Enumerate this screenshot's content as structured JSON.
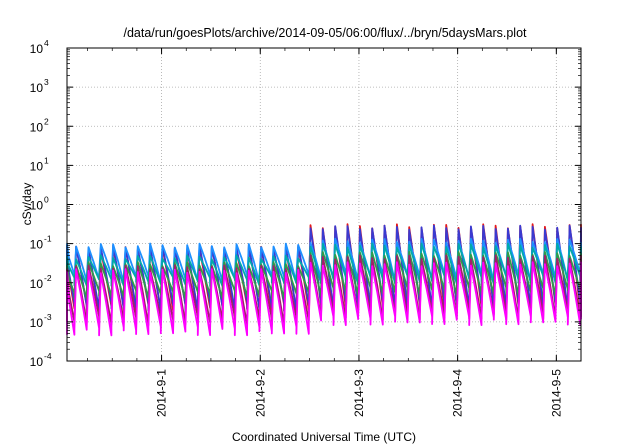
{
  "chart_data": {
    "type": "line",
    "title": "/data/run/goesPlots/archive/2014-09-05/06:00/flux/../bryn/5daysMars.plot",
    "xlabel": "Coordinated Universal Time (UTC)",
    "ylabel": "cSv/day",
    "y_scale": "log",
    "ylim": [
      0.0001,
      10000
    ],
    "y_ticks": [
      {
        "base": "10",
        "exp": "-4"
      },
      {
        "base": "10",
        "exp": "-3"
      },
      {
        "base": "10",
        "exp": "-2"
      },
      {
        "base": "10",
        "exp": "-1"
      },
      {
        "base": "10",
        "exp": "0"
      },
      {
        "base": "10",
        "exp": "1"
      },
      {
        "base": "10",
        "exp": "2"
      },
      {
        "base": "10",
        "exp": "3"
      },
      {
        "base": "10",
        "exp": "4"
      }
    ],
    "xlim": [
      "2014-08-31T01:00",
      "2014-09-05T06:00"
    ],
    "x_ticks": [
      {
        "label": "2014-9-1",
        "time": "2014-09-01T00:00"
      },
      {
        "label": "2014-9-2",
        "time": "2014-09-02T00:00"
      },
      {
        "label": "2014-9-3",
        "time": "2014-09-03T00:00"
      },
      {
        "label": "2014-9-4",
        "time": "2014-09-04T00:00"
      },
      {
        "label": "2014-9-5",
        "time": "2014-09-05T00:00"
      }
    ],
    "grid": true,
    "pattern": {
      "description": "sawtooth: sharp rise then decay",
      "period_hours": 3,
      "level_change_time": "2014-09-02T09:30"
    },
    "series": [
      {
        "color": "#e41a1c",
        "peak_before": 0.075,
        "trough_before": 0.0022,
        "peak_after": 0.28,
        "trough_after": 0.0021
      },
      {
        "color": "#3a3ad0",
        "peak_before": 0.08,
        "trough_before": 0.0025,
        "peak_after": 0.26,
        "trough_after": 0.0026
      },
      {
        "color": "#1e90ff",
        "peak_before": 0.09,
        "trough_before": 0.013,
        "peak_after": 0.12,
        "trough_after": 0.014
      },
      {
        "color": "#00aaaa",
        "peak_before": 0.045,
        "trough_before": 0.011,
        "peak_after": 0.09,
        "trough_after": 0.012
      },
      {
        "color": "#2e9b4a",
        "peak_before": 0.03,
        "trough_before": 0.005,
        "peak_after": 0.055,
        "trough_after": 0.006
      },
      {
        "color": "#a0206a",
        "peak_before": 0.025,
        "trough_before": 0.0011,
        "peak_after": 0.045,
        "trough_after": 0.0015
      },
      {
        "color": "#ff00ff",
        "peak_before": 0.02,
        "trough_before": 0.0006,
        "peak_after": 0.03,
        "trough_after": 0.0011
      }
    ]
  }
}
